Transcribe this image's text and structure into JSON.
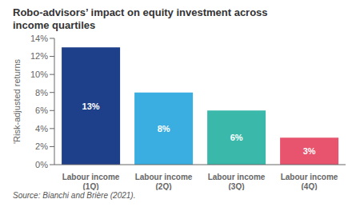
{
  "chart_data": {
    "type": "bar",
    "title": "Robo-advisors’ impact on equity investment across\nincome quartiles",
    "categories": [
      "Labour income\n(1Q)",
      "Labour income\n(2Q)",
      "Labour income\n(3Q)",
      "Labour income\n(4Q)"
    ],
    "values": [
      13,
      8,
      6,
      3
    ],
    "value_labels": [
      "13%",
      "8%",
      "6%",
      "3%"
    ],
    "data_labels": true,
    "colors": [
      "#1e3f8a",
      "#3aaee0",
      "#3ab8aa",
      "#e8536e"
    ],
    "ylabel": "'Risk-adjusted returns",
    "ylim": [
      0,
      14
    ],
    "yticks": [
      {
        "value": 0,
        "label": "0%"
      },
      {
        "value": 2,
        "label": "2%"
      },
      {
        "value": 4,
        "label": "4%"
      },
      {
        "value": 6,
        "label": "6%"
      },
      {
        "value": 8,
        "label": "8%"
      },
      {
        "value": 10,
        "label": "10%"
      },
      {
        "value": 12,
        "label": "12%"
      },
      {
        "value": 14,
        "label": "14%"
      }
    ],
    "grid": false,
    "annotations": [
      "Source: Bianchi and Brière (2021)."
    ]
  }
}
